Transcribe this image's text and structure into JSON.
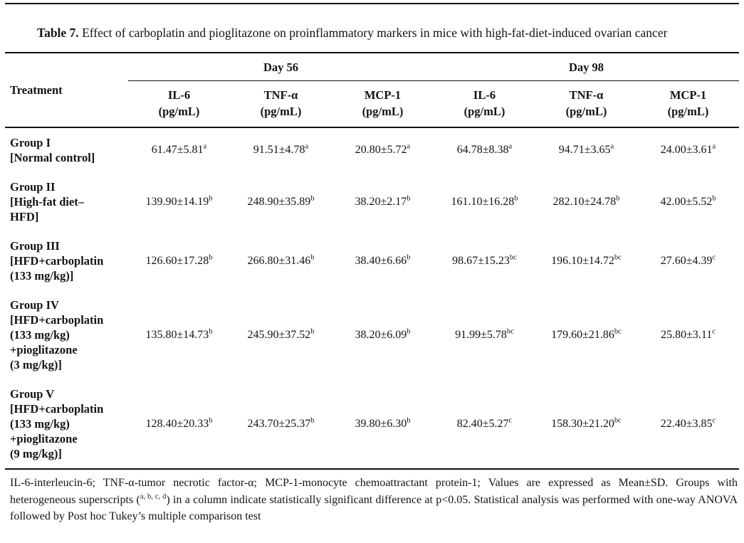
{
  "title": {
    "label": "Table 7.",
    "text": " Effect of carboplatin and pioglitazone on proinflammatory markers in mice with high-fat-diet-induced ovarian cancer"
  },
  "table": {
    "treatment_header": "Treatment",
    "day_groups": [
      "Day 56",
      "Day 98"
    ],
    "columns": [
      {
        "name": "IL-6",
        "unit": "(pg/mL)"
      },
      {
        "name": "TNF-α",
        "unit": "(pg/mL)"
      },
      {
        "name": "MCP-1",
        "unit": "(pg/mL)"
      },
      {
        "name": "IL-6",
        "unit": "(pg/mL)"
      },
      {
        "name": "TNF-α",
        "unit": "(pg/mL)"
      },
      {
        "name": "MCP-1",
        "unit": "(pg/mL)"
      }
    ],
    "rows": [
      {
        "treatment_lines": [
          "Group I",
          "[Normal control]"
        ],
        "values": [
          {
            "v": "61.47±5.81",
            "sup": "a"
          },
          {
            "v": "91.51±4.78",
            "sup": "a"
          },
          {
            "v": "20.80±5.72",
            "sup": "a"
          },
          {
            "v": "64.78±8.38",
            "sup": "a"
          },
          {
            "v": "94.71±3.65",
            "sup": "a"
          },
          {
            "v": "24.00±3.61",
            "sup": "a"
          }
        ]
      },
      {
        "treatment_lines": [
          "Group II",
          "[High-fat diet–",
          "HFD]"
        ],
        "values": [
          {
            "v": "139.90±14.19",
            "sup": "b"
          },
          {
            "v": "248.90±35.89",
            "sup": "b"
          },
          {
            "v": "38.20±2.17",
            "sup": "b"
          },
          {
            "v": "161.10±16.28",
            "sup": "b"
          },
          {
            "v": "282.10±24.78",
            "sup": "b"
          },
          {
            "v": "42.00±5.52",
            "sup": "b"
          }
        ]
      },
      {
        "treatment_lines": [
          "Group III",
          "[HFD+carboplatin",
          "(133 mg/kg)]"
        ],
        "values": [
          {
            "v": "126.60±17.28",
            "sup": "b"
          },
          {
            "v": "266.80±31.46",
            "sup": "b"
          },
          {
            "v": "38.40±6.66",
            "sup": "b"
          },
          {
            "v": "98.67±15.23",
            "sup": "bc"
          },
          {
            "v": "196.10±14.72",
            "sup": "bc"
          },
          {
            "v": "27.60±4.39",
            "sup": "c"
          }
        ]
      },
      {
        "treatment_lines": [
          "Group IV",
          "[HFD+carboplatin",
          "(133 mg/kg)",
          "+pioglitazone",
          "(3 mg/kg)]"
        ],
        "values": [
          {
            "v": "135.80±14.73",
            "sup": "b"
          },
          {
            "v": "245.90±37.52",
            "sup": "b"
          },
          {
            "v": "38.20±6.09",
            "sup": "b"
          },
          {
            "v": "91.99±5.78",
            "sup": "bc"
          },
          {
            "v": "179.60±21.86",
            "sup": "bc"
          },
          {
            "v": "25.80±3.11",
            "sup": "c"
          }
        ]
      },
      {
        "treatment_lines": [
          "Group V",
          "[HFD+carboplatin",
          "(133 mg/kg)",
          "+pioglitazone",
          "(9 mg/kg)]"
        ],
        "values": [
          {
            "v": "128.40±20.33",
            "sup": "b"
          },
          {
            "v": "243.70±25.37",
            "sup": "b"
          },
          {
            "v": "39.80±6.30",
            "sup": "b"
          },
          {
            "v": "82.40±5.27",
            "sup": "c"
          },
          {
            "v": "158.30±21.20",
            "sup": "bc"
          },
          {
            "v": "22.40±3.85",
            "sup": "c"
          }
        ]
      }
    ]
  },
  "footnote": {
    "part1": "IL-6-interleucin-6; TNF-α-tumor necrotic factor-α; MCP-1-monocyte chemoattractant protein-1;  Values are expressed as Mean±SD. Groups with heterogeneous superscripts (",
    "sups": "a, b, c, d",
    "part2": ") in a column indicate statistically significant difference at p<0.05. Statistical analysis was performed with one-way ANOVA followed by Post hoc Tukey’s multiple comparison test"
  },
  "colors": {
    "text": "#131313",
    "rule": "#111111",
    "background": "#ffffff"
  }
}
